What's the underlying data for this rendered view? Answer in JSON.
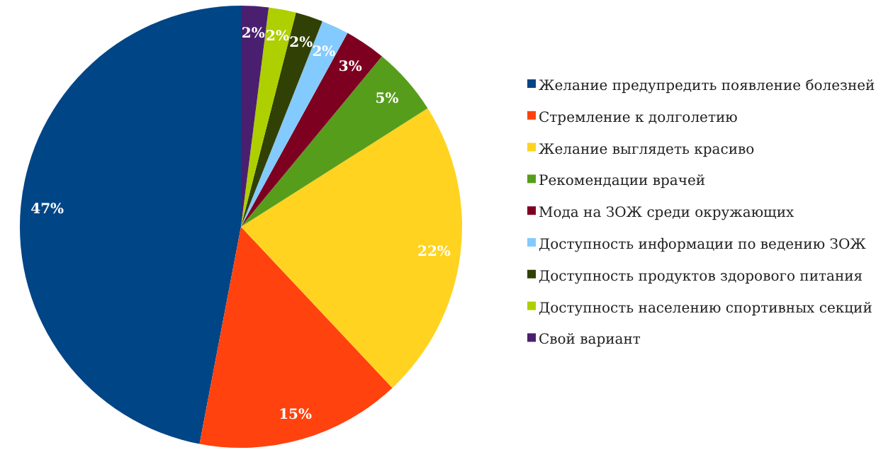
{
  "chart_data": {
    "type": "pie",
    "categories": [
      "Желание предупредить появление болезней",
      "Стремление к долголетию",
      "Желание выглядеть красиво",
      "Рекомендации врачей",
      "Мода на ЗОЖ среди окружающих",
      "Доступность информации по ведению ЗОЖ",
      "Доступность продуктов здорового питания",
      "Доступность населению спортивных секций",
      "Свой вариант"
    ],
    "values": [
      47,
      15,
      22,
      5,
      3,
      2,
      2,
      2,
      2
    ],
    "value_labels": [
      "47%",
      "15%",
      "22%",
      "5%",
      "3%",
      "2%",
      "2%",
      "2%",
      "2%"
    ],
    "colors": [
      "#004586",
      "#ff420e",
      "#ffd320",
      "#579d1c",
      "#7e0021",
      "#83caff",
      "#314004",
      "#aecf00",
      "#4b1f6f"
    ],
    "legend": "right"
  }
}
